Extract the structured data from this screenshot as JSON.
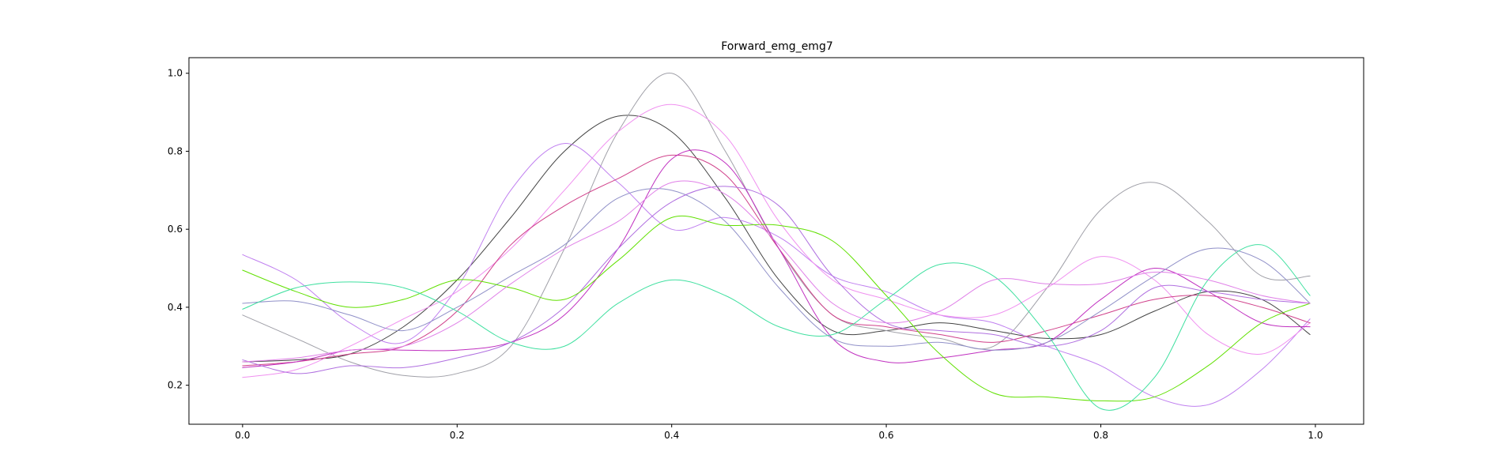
{
  "chart_data": {
    "type": "line",
    "title": "Forward_emg_emg7",
    "xlabel": "",
    "ylabel": "",
    "xlim": [
      -0.05,
      1.045
    ],
    "ylim": [
      0.1,
      1.04
    ],
    "xticks": [
      0.0,
      0.2,
      0.4,
      0.6,
      0.8,
      1.0
    ],
    "xtick_labels": [
      "0.0",
      "0.2",
      "0.4",
      "0.6",
      "0.8",
      "1.0"
    ],
    "yticks": [
      0.2,
      0.4,
      0.6,
      0.8,
      1.0
    ],
    "ytick_labels": [
      "0.2",
      "0.4",
      "0.6",
      "0.8",
      "1.0"
    ],
    "grid": false,
    "x": [
      0.0,
      0.05,
      0.1,
      0.15,
      0.2,
      0.25,
      0.3,
      0.35,
      0.4,
      0.45,
      0.5,
      0.55,
      0.6,
      0.65,
      0.7,
      0.75,
      0.8,
      0.85,
      0.9,
      0.95,
      0.995
    ],
    "series": [
      {
        "color": "#444444",
        "values": [
          0.26,
          0.265,
          0.28,
          0.35,
          0.47,
          0.63,
          0.8,
          0.89,
          0.85,
          0.68,
          0.47,
          0.34,
          0.34,
          0.36,
          0.34,
          0.32,
          0.33,
          0.39,
          0.44,
          0.42,
          0.33
        ]
      },
      {
        "color": "#a0a0a8",
        "values": [
          0.38,
          0.32,
          0.26,
          0.225,
          0.23,
          0.3,
          0.55,
          0.85,
          1.0,
          0.8,
          0.55,
          0.38,
          0.34,
          0.32,
          0.3,
          0.45,
          0.65,
          0.72,
          0.62,
          0.48,
          0.48
        ]
      },
      {
        "color": "#c080f0",
        "values": [
          0.535,
          0.47,
          0.36,
          0.31,
          0.45,
          0.7,
          0.82,
          0.72,
          0.6,
          0.63,
          0.58,
          0.48,
          0.44,
          0.38,
          0.36,
          0.3,
          0.25,
          0.17,
          0.15,
          0.24,
          0.37
        ]
      },
      {
        "color": "#f090f0",
        "values": [
          0.22,
          0.24,
          0.3,
          0.37,
          0.44,
          0.55,
          0.7,
          0.85,
          0.92,
          0.84,
          0.62,
          0.47,
          0.42,
          0.38,
          0.38,
          0.45,
          0.53,
          0.47,
          0.33,
          0.28,
          0.36
        ]
      },
      {
        "color": "#d0408a",
        "values": [
          0.25,
          0.26,
          0.28,
          0.3,
          0.39,
          0.56,
          0.66,
          0.73,
          0.79,
          0.74,
          0.55,
          0.38,
          0.35,
          0.33,
          0.31,
          0.34,
          0.38,
          0.42,
          0.43,
          0.4,
          0.36
        ]
      },
      {
        "color": "#c030c0",
        "values": [
          0.245,
          0.26,
          0.29,
          0.29,
          0.29,
          0.31,
          0.38,
          0.55,
          0.78,
          0.77,
          0.55,
          0.32,
          0.26,
          0.27,
          0.29,
          0.31,
          0.42,
          0.5,
          0.44,
          0.36,
          0.35
        ]
      },
      {
        "color": "#9090c8",
        "values": [
          0.41,
          0.415,
          0.38,
          0.34,
          0.4,
          0.48,
          0.56,
          0.68,
          0.7,
          0.62,
          0.45,
          0.32,
          0.3,
          0.31,
          0.29,
          0.31,
          0.39,
          0.48,
          0.55,
          0.52,
          0.41
        ]
      },
      {
        "color": "#b070e0",
        "values": [
          0.265,
          0.23,
          0.25,
          0.245,
          0.27,
          0.31,
          0.4,
          0.55,
          0.67,
          0.71,
          0.66,
          0.48,
          0.36,
          0.34,
          0.33,
          0.3,
          0.34,
          0.45,
          0.44,
          0.42,
          0.41
        ]
      },
      {
        "color": "#60e000",
        "values": [
          0.495,
          0.44,
          0.4,
          0.42,
          0.47,
          0.45,
          0.42,
          0.52,
          0.63,
          0.61,
          0.61,
          0.57,
          0.43,
          0.28,
          0.18,
          0.17,
          0.16,
          0.17,
          0.25,
          0.36,
          0.41
        ]
      },
      {
        "color": "#40e0a0",
        "values": [
          0.395,
          0.45,
          0.465,
          0.45,
          0.39,
          0.31,
          0.3,
          0.41,
          0.47,
          0.43,
          0.35,
          0.33,
          0.42,
          0.51,
          0.48,
          0.33,
          0.14,
          0.22,
          0.47,
          0.56,
          0.43
        ]
      },
      {
        "color": "#e080e8",
        "values": [
          0.26,
          0.27,
          0.29,
          0.3,
          0.36,
          0.46,
          0.55,
          0.62,
          0.72,
          0.69,
          0.56,
          0.41,
          0.36,
          0.39,
          0.47,
          0.46,
          0.46,
          0.49,
          0.47,
          0.43,
          0.41
        ]
      }
    ]
  }
}
